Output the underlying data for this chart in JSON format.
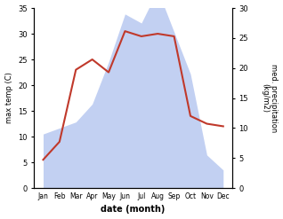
{
  "months": [
    "Jan",
    "Feb",
    "Mar",
    "Apr",
    "May",
    "Jun",
    "Jul",
    "Aug",
    "Sep",
    "Oct",
    "Nov",
    "Dec"
  ],
  "temperature": [
    5.5,
    9.0,
    23.0,
    25.0,
    22.5,
    30.5,
    29.5,
    30.0,
    29.5,
    14.0,
    12.5,
    12.0
  ],
  "precipitation": [
    9.0,
    10.0,
    11.0,
    14.0,
    21.0,
    29.0,
    27.5,
    33.0,
    26.0,
    19.0,
    5.5,
    3.0
  ],
  "temp_color": "#c0392b",
  "precip_color": "#b8c8f0",
  "ylabel_left": "max temp (C)",
  "ylabel_right": "med. precipitation\n(kg/m2)",
  "xlabel": "date (month)",
  "ylim_left": [
    0,
    35
  ],
  "ylim_right": [
    0,
    30
  ],
  "yticks_left": [
    0,
    5,
    10,
    15,
    20,
    25,
    30,
    35
  ],
  "yticks_right": [
    0,
    5,
    10,
    15,
    20,
    25,
    30
  ],
  "background_color": "#ffffff"
}
